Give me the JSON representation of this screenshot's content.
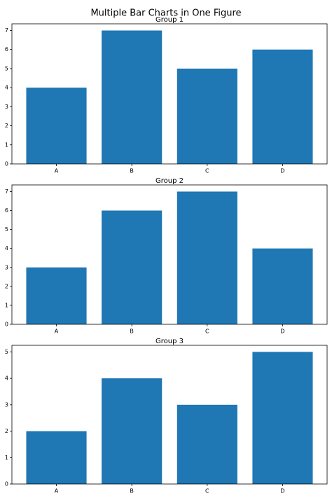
{
  "title": "Multiple Bar Charts in One Figure",
  "chart_data": [
    {
      "type": "bar",
      "title": "Group 1",
      "categories": [
        "A",
        "B",
        "C",
        "D"
      ],
      "values": [
        4,
        7,
        5,
        6
      ],
      "color": "#1f77b4",
      "ylim": [
        0,
        7.35
      ],
      "yticks": [
        0,
        1,
        2,
        3,
        4,
        5,
        6,
        7
      ]
    },
    {
      "type": "bar",
      "title": "Group 2",
      "categories": [
        "A",
        "B",
        "C",
        "D"
      ],
      "values": [
        3,
        6,
        7,
        4
      ],
      "color": "#1f77b4",
      "ylim": [
        0,
        7.35
      ],
      "yticks": [
        0,
        1,
        2,
        3,
        4,
        5,
        6,
        7
      ]
    },
    {
      "type": "bar",
      "title": "Group 3",
      "categories": [
        "A",
        "B",
        "C",
        "D"
      ],
      "values": [
        2,
        4,
        3,
        5
      ],
      "color": "#1f77b4",
      "ylim": [
        0,
        5.25
      ],
      "yticks": [
        0,
        1,
        2,
        3,
        4,
        5
      ]
    }
  ]
}
